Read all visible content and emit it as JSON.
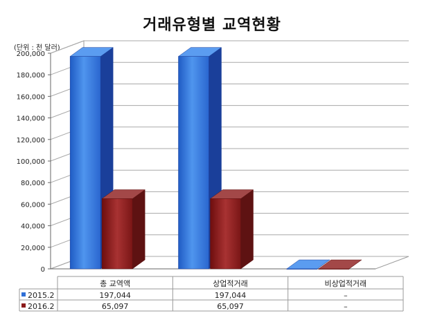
{
  "chart_data": {
    "type": "bar",
    "title": "거래유형별 교역현황",
    "unit_label": "(단위 : 천 달러)",
    "categories": [
      "총 교역액",
      "상업적거래",
      "비상업적거래"
    ],
    "series": [
      {
        "name": "2015.2",
        "values": [
          197044,
          197044,
          0
        ],
        "display": [
          "197,044",
          "197,044",
          "–"
        ],
        "color": "#2f6fd6"
      },
      {
        "name": "2016.2",
        "values": [
          65097,
          65097,
          0
        ],
        "display": [
          "65,097",
          "65,097",
          "–"
        ],
        "color": "#8b1a1a"
      }
    ],
    "ylim": [
      0,
      200000
    ],
    "yticks": [
      "0",
      "20,000",
      "40,000",
      "60,000",
      "80,000",
      "100,000",
      "120,000",
      "140,000",
      "160,000",
      "180,000",
      "200,000"
    ],
    "grid": true,
    "legend": "data-table"
  }
}
